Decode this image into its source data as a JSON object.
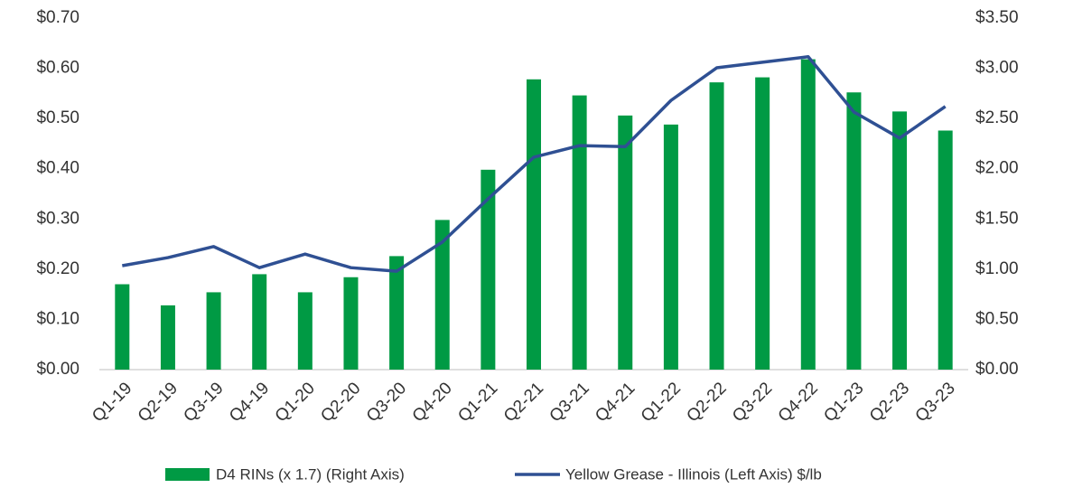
{
  "chart_data": {
    "type": "bar-line",
    "categories": [
      "Q1-19",
      "Q2-19",
      "Q3-19",
      "Q4-19",
      "Q1-20",
      "Q2-20",
      "Q3-20",
      "Q4-20",
      "Q1-21",
      "Q2-21",
      "Q3-21",
      "Q4-21",
      "Q1-22",
      "Q2-22",
      "Q3-22",
      "Q4-22",
      "Q1-23",
      "Q2-23",
      "Q3-23"
    ],
    "series": [
      {
        "name": "D4 RINs (x 1.7) (Right Axis)",
        "type": "bar",
        "axis": "y2",
        "color": "#009a44",
        "values": [
          0.85,
          0.64,
          0.77,
          0.95,
          0.77,
          0.92,
          1.13,
          1.49,
          1.99,
          2.89,
          2.73,
          2.53,
          2.44,
          2.86,
          2.91,
          3.09,
          2.76,
          2.57,
          2.38
        ]
      },
      {
        "name": "Yellow Grease - Illinois (Left Axis) $/lb",
        "type": "line",
        "axis": "y",
        "color": "#2f5093",
        "values": [
          0.207,
          0.223,
          0.245,
          0.203,
          0.23,
          0.203,
          0.196,
          0.254,
          0.34,
          0.423,
          0.446,
          0.444,
          0.536,
          0.601,
          0.612,
          0.623,
          0.513,
          0.461,
          0.524
        ]
      }
    ],
    "ylim": [
      0,
      0.7
    ],
    "yticks": [
      {
        "value": 0,
        "label": "$0.00"
      },
      {
        "value": 0.1,
        "label": "$0.10"
      },
      {
        "value": 0.2,
        "label": "$0.20"
      },
      {
        "value": 0.3,
        "label": "$0.30"
      },
      {
        "value": 0.4,
        "label": "$0.40"
      },
      {
        "value": 0.5,
        "label": "$0.50"
      },
      {
        "value": 0.6,
        "label": "$0.60"
      },
      {
        "value": 0.7,
        "label": "$0.70"
      }
    ],
    "y2lim": [
      0,
      3.5
    ],
    "y2ticks": [
      {
        "value": 0,
        "label": "$0.00"
      },
      {
        "value": 0.5,
        "label": "$0.50"
      },
      {
        "value": 1,
        "label": "$1.00"
      },
      {
        "value": 1.5,
        "label": "$1.50"
      },
      {
        "value": 2,
        "label": "$2.00"
      },
      {
        "value": 2.5,
        "label": "$2.50"
      },
      {
        "value": 3,
        "label": "$3.00"
      },
      {
        "value": 3.5,
        "label": "$3.50"
      }
    ],
    "grid": false,
    "legend": "bottom"
  }
}
